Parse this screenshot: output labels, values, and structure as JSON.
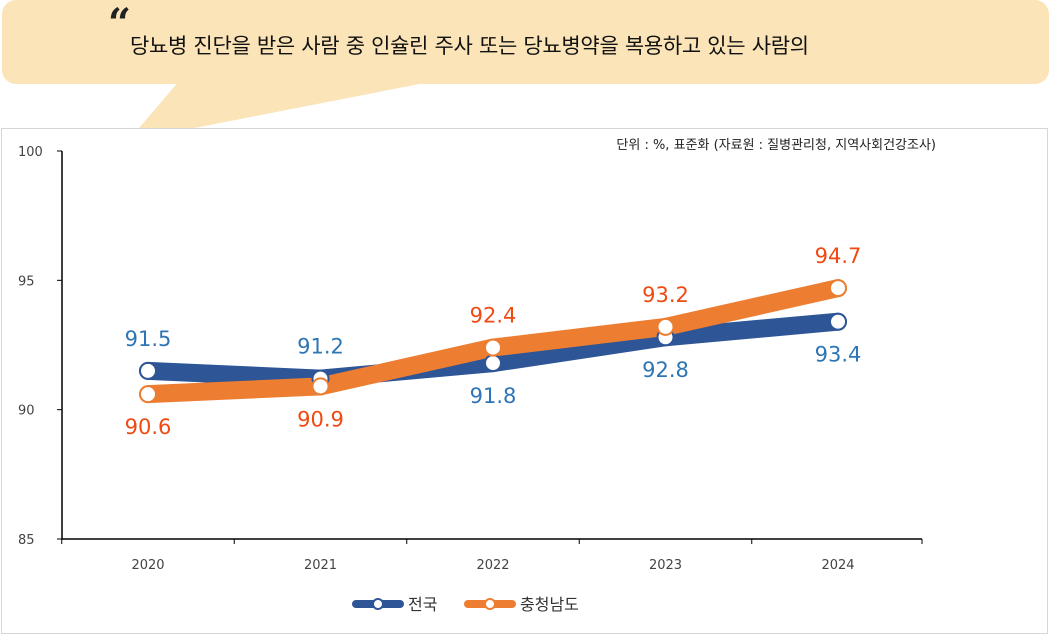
{
  "header": {
    "quote_mark": "“",
    "text": "당뇨병 진단을 받은 사람 중 인슐린 주사 또는 당뇨병약을 복용하고 있는 사람의"
  },
  "chart_data": {
    "type": "line",
    "unit_note": "단위 : %, 표준화 (자료원 : 질병관리청, 지역사회건강조사)",
    "categories": [
      "2020",
      "2021",
      "2022",
      "2023",
      "2024"
    ],
    "x_tick_labels": [
      "2020",
      "2021",
      "2022",
      "2023",
      "2024"
    ],
    "ylim": [
      85,
      100
    ],
    "y_ticks": [
      85,
      90,
      95,
      100
    ],
    "y_tick_labels": [
      "85",
      "90",
      "95",
      "100"
    ],
    "grid": false,
    "legend_position": "bottom",
    "series": [
      {
        "name": "전국",
        "values": [
          91.5,
          91.2,
          91.8,
          92.8,
          93.4
        ],
        "labels": [
          "91.5",
          "91.2",
          "91.8",
          "92.8",
          "93.4"
        ],
        "color": "#2e5596",
        "label_color": "#2e75b6"
      },
      {
        "name": "충청남도",
        "values": [
          90.6,
          90.9,
          92.4,
          93.2,
          94.7
        ],
        "labels": [
          "90.6",
          "90.9",
          "92.4",
          "93.2",
          "94.7"
        ],
        "color": "#ed7d31",
        "label_color": "#f04a12"
      }
    ]
  }
}
